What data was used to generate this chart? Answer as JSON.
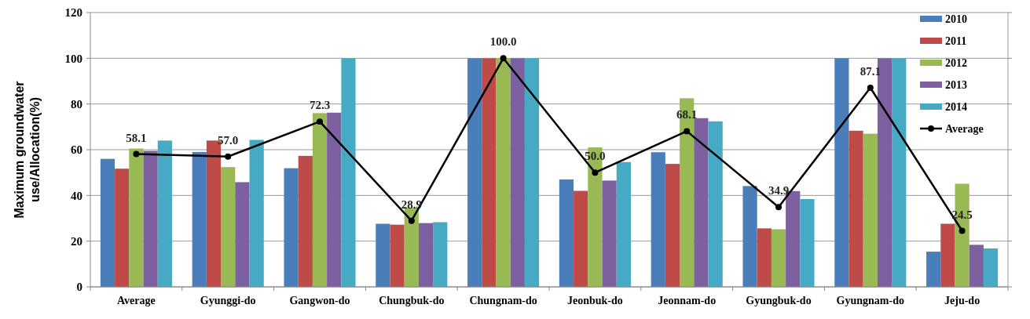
{
  "chart_data": {
    "type": "bar",
    "ylabel": "Maximum groundwater\nuse/Allocation(%)",
    "categories": [
      "Average",
      "Gyunggi-do",
      "Gangwon-do",
      "Chungbuk-do",
      "Chungnam-do",
      "Jeonbuk-do",
      "Jeonnam-do",
      "Gyungbuk-do",
      "Gyungnam-do",
      "Jeju-do"
    ],
    "series": [
      {
        "name": "2010",
        "color": "#4a7ebb",
        "values": [
          56,
          59,
          51.9,
          27.6,
          100,
          47,
          58.9,
          44.1,
          100,
          15.4
        ]
      },
      {
        "name": "2011",
        "color": "#be4b48",
        "values": [
          51.7,
          64,
          57.3,
          27.2,
          100,
          42,
          53.8,
          25.6,
          68.3,
          27.6
        ]
      },
      {
        "name": "2012",
        "color": "#98b954",
        "values": [
          60.5,
          52.4,
          76,
          34.6,
          100,
          61,
          82.5,
          25.2,
          67,
          45.1
        ]
      },
      {
        "name": "2013",
        "color": "#7d60a0",
        "values": [
          59.5,
          45.8,
          76.2,
          27.9,
          100,
          46.5,
          73.8,
          41.9,
          100,
          18.4
        ]
      },
      {
        "name": "2014",
        "color": "#46aac5",
        "values": [
          64,
          64.3,
          100,
          28.3,
          100,
          54.6,
          72.4,
          38.4,
          100,
          16.8
        ]
      },
      {
        "name": "Average",
        "type": "line",
        "color": "#000000",
        "marker": "circle",
        "data_labels": true,
        "value_labels": [
          "58.1",
          "57.0",
          "72.3",
          "28.9",
          "100.0",
          "50.0",
          "68.1",
          "34.9",
          "87.1",
          "24.5"
        ],
        "values": [
          58.1,
          57.0,
          72.3,
          28.9,
          100.0,
          50.0,
          68.1,
          34.9,
          87.1,
          24.5
        ]
      }
    ],
    "ylim": [
      0,
      120
    ],
    "yticks": [
      0,
      20,
      40,
      60,
      80,
      100,
      120
    ],
    "grid": "y",
    "legend": "top right"
  }
}
